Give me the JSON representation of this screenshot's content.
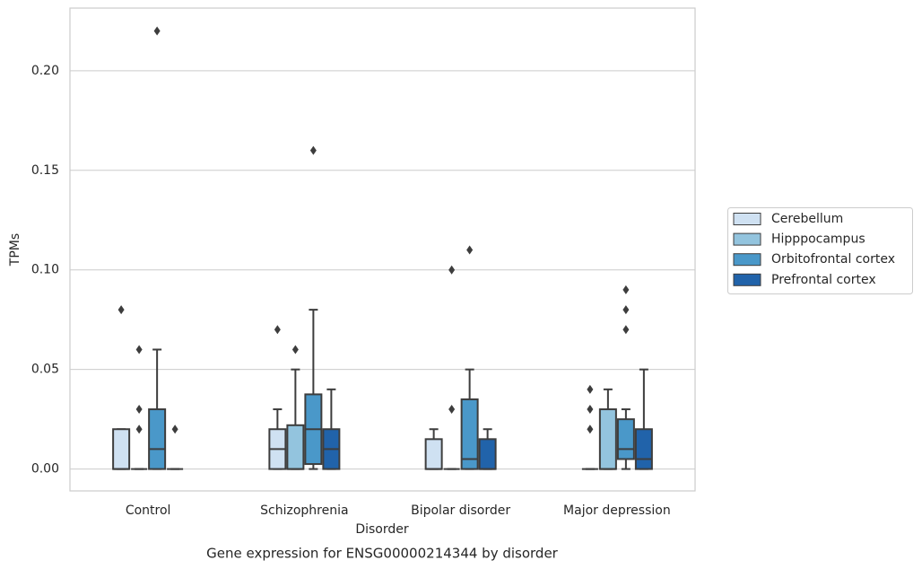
{
  "chart_data": {
    "type": "box",
    "title": "Gene expression for ENSG00000214344 by disorder",
    "x_label": "Disorder",
    "y_label": "TPMs",
    "categories": [
      "Control",
      "Schizophrenia",
      "Bipolar disorder",
      "Major depression"
    ],
    "ylim": [
      -0.011,
      0.2315
    ],
    "yticks": [
      {
        "value": 0,
        "label": "0.00"
      },
      0.05,
      {
        "value": 0.1,
        "label": "0.10"
      },
      0.15,
      {
        "value": 0.2,
        "label": "0.20"
      }
    ],
    "grid": true,
    "legend": "right",
    "series": [
      {
        "name": "Cerebellum",
        "color": "#cfe1f2",
        "boxes": [
          {
            "min": 0,
            "q1": 0,
            "median": 0,
            "q3": 0.02,
            "max": 0.02,
            "outliers": [
              0.08
            ]
          },
          {
            "min": 0,
            "q1": 0,
            "median": 0.01,
            "q3": 0.02,
            "max": 0.03,
            "outliers": [
              0.07
            ]
          },
          {
            "min": 0,
            "q1": 0,
            "median": 0,
            "q3": 0.015,
            "max": 0.02,
            "outliers": []
          },
          {
            "min": 0,
            "q1": 0,
            "median": 0,
            "q3": 0,
            "max": 0,
            "outliers": [
              0.02,
              0.03,
              0.04
            ]
          }
        ]
      },
      {
        "name": "Hipppocampus",
        "color": "#93c4de",
        "boxes": [
          {
            "min": 0,
            "q1": 0,
            "median": 0,
            "q3": 0,
            "max": 0,
            "outliers": [
              0.02,
              0.03,
              0.06
            ]
          },
          {
            "min": 0,
            "q1": 0,
            "median": 0,
            "q3": 0.022,
            "max": 0.05,
            "outliers": [
              0.06
            ]
          },
          {
            "min": 0,
            "q1": 0,
            "median": 0,
            "q3": 0,
            "max": 0,
            "outliers": [
              0.03,
              0.1
            ]
          },
          {
            "min": 0,
            "q1": 0,
            "median": 0,
            "q3": 0.03,
            "max": 0.04,
            "outliers": []
          }
        ]
      },
      {
        "name": "Orbitofrontal cortex",
        "color": "#4a98c9",
        "boxes": [
          {
            "min": 0,
            "q1": 0,
            "median": 0.01,
            "q3": 0.03,
            "max": 0.06,
            "outliers": [
              0.22
            ]
          },
          {
            "min": 0,
            "q1": 0.0025,
            "median": 0.02,
            "q3": 0.0375,
            "max": 0.08,
            "outliers": [
              0.16
            ]
          },
          {
            "min": 0,
            "q1": 0,
            "median": 0.005,
            "q3": 0.035,
            "max": 0.05,
            "outliers": [
              0.11
            ]
          },
          {
            "min": 0,
            "q1": 0.005,
            "median": 0.01,
            "q3": 0.025,
            "max": 0.03,
            "outliers": [
              0.07,
              0.08,
              0.09
            ]
          }
        ]
      },
      {
        "name": "Prefrontal cortex",
        "color": "#2163aa",
        "boxes": [
          {
            "min": 0,
            "q1": 0,
            "median": 0,
            "q3": 0,
            "max": 0,
            "outliers": [
              0.02
            ]
          },
          {
            "min": 0,
            "q1": 0,
            "median": 0.01,
            "q3": 0.02,
            "max": 0.04,
            "outliers": []
          },
          {
            "min": 0,
            "q1": 0,
            "median": 0,
            "q3": 0.015,
            "max": 0.02,
            "outliers": []
          },
          {
            "min": 0,
            "q1": 0,
            "median": 0.005,
            "q3": 0.02,
            "max": 0.05,
            "outliers": []
          }
        ]
      }
    ]
  }
}
